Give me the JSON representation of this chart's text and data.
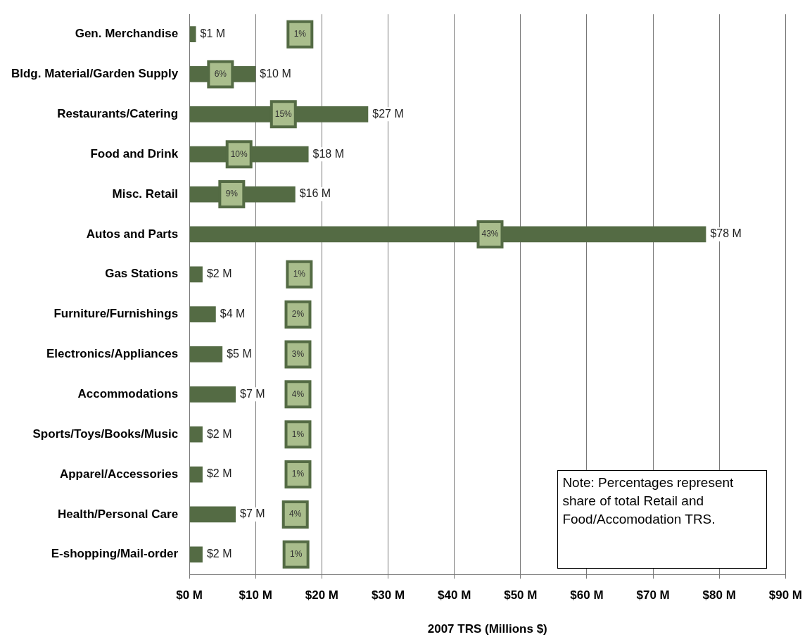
{
  "chart_data": {
    "type": "bar",
    "orientation": "horizontal",
    "xlabel": "2007 TRS (Millions $)",
    "categories": [
      "Gen. Merchandise",
      "Bldg. Material/Garden Supply",
      "Restaurants/Catering",
      "Food and Drink",
      "Misc. Retail",
      "Autos and Parts",
      "Gas Stations",
      "Furniture/Furnishings",
      "Electronics/Appliances",
      "Accommodations",
      "Sports/Toys/Books/Music",
      "Apparel/Accessories",
      "Health/Personal Care",
      "E-shopping/Mail-order"
    ],
    "values": [
      1,
      10,
      27,
      18,
      16,
      78,
      2,
      4,
      5,
      7,
      2,
      2,
      7,
      2
    ],
    "value_labels": [
      "$1 M",
      "$10 M",
      "$27 M",
      "$18 M",
      "$16 M",
      "$78 M",
      "$2 M",
      "$4 M",
      "$5 M",
      "$7 M",
      "$2 M",
      "$2 M",
      "$7 M",
      "$2 M"
    ],
    "color": "#546b44",
    "xlim": [
      0,
      90
    ],
    "xticks": [
      {
        "value": 0,
        "label": "$0 M"
      },
      {
        "value": 10,
        "label": "$10 M"
      },
      {
        "value": 20,
        "label": "$20 M"
      },
      {
        "value": 30,
        "label": "$30 M"
      },
      {
        "value": 40,
        "label": "$40 M"
      },
      {
        "value": 50,
        "label": "$50 M"
      },
      {
        "value": 60,
        "label": "$60 M"
      },
      {
        "value": 70,
        "label": "$70 M"
      },
      {
        "value": 80,
        "label": "$80 M"
      },
      {
        "value": 90,
        "label": "$90 M"
      }
    ],
    "grid": "x",
    "legend": false,
    "annotations": [
      {
        "text": "1%",
        "x": 16.7,
        "y": "Gen. Merchandise"
      },
      {
        "text": "6%",
        "x": 4.7,
        "y": "Bldg. Material/Garden Supply"
      },
      {
        "text": "15%",
        "x": 14.2,
        "y": "Restaurants/Catering"
      },
      {
        "text": "10%",
        "x": 7.5,
        "y": "Food and Drink"
      },
      {
        "text": "9%",
        "x": 6.4,
        "y": "Misc. Retail"
      },
      {
        "text": "43%",
        "x": 45.4,
        "y": "Autos and Parts"
      },
      {
        "text": "1%",
        "x": 16.6,
        "y": "Gas Stations"
      },
      {
        "text": "2%",
        "x": 16.4,
        "y": "Furniture/Furnishings"
      },
      {
        "text": "3%",
        "x": 16.4,
        "y": "Electronics/Appliances"
      },
      {
        "text": "4%",
        "x": 16.4,
        "y": "Accommodations"
      },
      {
        "text": "1%",
        "x": 16.4,
        "y": "Sports/Toys/Books/Music"
      },
      {
        "text": "1%",
        "x": 16.4,
        "y": "Apparel/Accessories"
      },
      {
        "text": "4%",
        "x": 16.0,
        "y": "Health/Personal Care"
      },
      {
        "text": "1%",
        "x": 16.1,
        "y": "E-shopping/Mail-order"
      },
      "Note: Percentages represent share of total Retail and Food/Accomodation TRS."
    ]
  }
}
